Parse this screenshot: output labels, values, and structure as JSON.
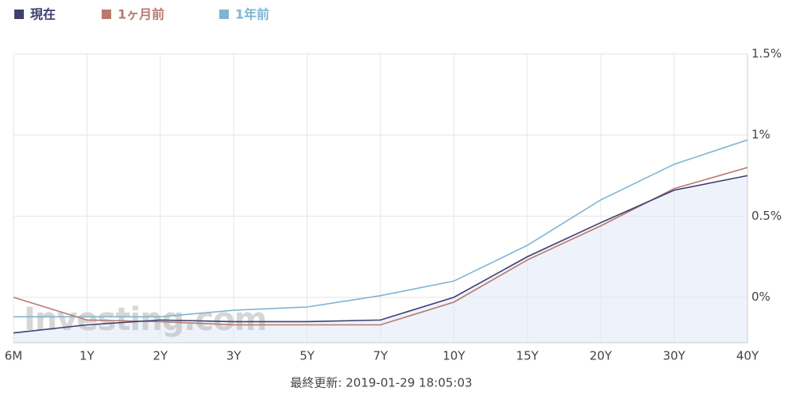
{
  "chart_data": {
    "type": "line",
    "categories": [
      "6M",
      "1Y",
      "2Y",
      "3Y",
      "5Y",
      "7Y",
      "10Y",
      "15Y",
      "20Y",
      "30Y",
      "40Y"
    ],
    "series": [
      {
        "name": "現在",
        "color": "#3d4070",
        "values": [
          -0.22,
          -0.17,
          -0.14,
          -0.15,
          -0.15,
          -0.14,
          0.0,
          0.25,
          0.46,
          0.66,
          0.75
        ]
      },
      {
        "name": "1ヶ月前",
        "color": "#b97a6e",
        "values": [
          0.0,
          -0.14,
          -0.15,
          -0.17,
          -0.17,
          -0.17,
          -0.03,
          0.23,
          0.44,
          0.67,
          0.8
        ]
      },
      {
        "name": "1年前",
        "color": "#7fb4d3",
        "values": [
          -0.12,
          -0.12,
          -0.12,
          -0.08,
          -0.06,
          0.01,
          0.1,
          0.32,
          0.6,
          0.82,
          0.97
        ]
      }
    ],
    "ylim": [
      -0.28,
      1.5
    ],
    "yticks": [
      {
        "value": 0,
        "label": "0%"
      },
      {
        "value": 0.5,
        "label": "0.5%"
      },
      {
        "value": 1,
        "label": "1%"
      },
      {
        "value": 1.5,
        "label": "1.5%"
      }
    ],
    "grid": true,
    "area_fill": "#eef2fb",
    "legend": "top-left",
    "watermark": "Investing.com",
    "footer": "最終更新: 2019-01-29 18:05:03"
  }
}
